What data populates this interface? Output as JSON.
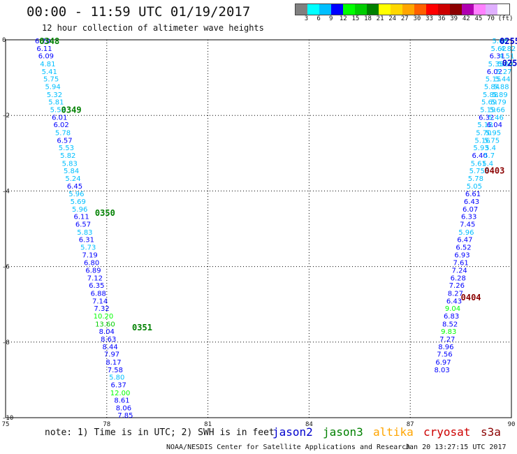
{
  "header": {
    "title": "00:00 - 11:59 UTC 01/19/2017",
    "subtitle": "12 hour collection of altimeter wave heights"
  },
  "legend": {
    "colors": [
      "#808080",
      "#00ffff",
      "#00bfff",
      "#0000ff",
      "#00ff00",
      "#00cd00",
      "#008000",
      "#ffff00",
      "#ffd700",
      "#ffa500",
      "#ff6000",
      "#ff0000",
      "#cd0000",
      "#8b0000",
      "#b000b0",
      "#ff80ff",
      "#e0b0ff",
      "#ffffff"
    ],
    "labels": [
      "3",
      "6",
      "9",
      "12",
      "15",
      "18",
      "21",
      "24",
      "27",
      "30",
      "33",
      "36",
      "39",
      "42",
      "45",
      "70",
      "(ft)"
    ]
  },
  "map": {
    "lon_range": [
      75,
      90
    ],
    "lat_range": [
      -10,
      0
    ],
    "lon_ticks": [
      "75",
      "78",
      "81",
      "84",
      "87",
      "90"
    ],
    "lat_ticks": [
      "0",
      "-2",
      "-4",
      "-6",
      "-8",
      "-10"
    ],
    "grid": "dotted"
  },
  "tracks": [
    {
      "satellite": "jason3",
      "points": [
        {
          "lon": 76.1,
          "lat": -0.02,
          "swh": "6.20"
        },
        {
          "lon": 76.15,
          "lat": -0.22,
          "swh": "6.11"
        },
        {
          "lon": 76.2,
          "lat": -0.42,
          "swh": "6.09"
        },
        {
          "lon": 76.25,
          "lat": -0.63,
          "swh": "4.81"
        },
        {
          "lon": 76.3,
          "lat": -0.83,
          "swh": "5.41"
        },
        {
          "lon": 76.35,
          "lat": -1.03,
          "swh": "5.75"
        },
        {
          "lon": 76.4,
          "lat": -1.23,
          "swh": "5.94"
        },
        {
          "lon": 76.45,
          "lat": -1.44,
          "swh": "5.32"
        },
        {
          "lon": 76.5,
          "lat": -1.64,
          "swh": "5.81"
        },
        {
          "lon": 76.55,
          "lat": -1.84,
          "swh": "5.52"
        },
        {
          "lon": 76.6,
          "lat": -2.04,
          "swh": "6.01"
        },
        {
          "lon": 76.65,
          "lat": -2.24,
          "swh": "6.02"
        },
        {
          "lon": 76.7,
          "lat": -2.45,
          "swh": "5.78"
        },
        {
          "lon": 76.75,
          "lat": -2.65,
          "swh": "6.57"
        },
        {
          "lon": 76.8,
          "lat": -2.85,
          "swh": "5.53"
        },
        {
          "lon": 76.85,
          "lat": -3.05,
          "swh": "5.82"
        },
        {
          "lon": 76.9,
          "lat": -3.26,
          "swh": "5.83"
        },
        {
          "lon": 76.95,
          "lat": -3.46,
          "swh": "5.84"
        },
        {
          "lon": 77.0,
          "lat": -3.66,
          "swh": "5.24"
        },
        {
          "lon": 77.05,
          "lat": -3.86,
          "swh": "6.45"
        },
        {
          "lon": 77.1,
          "lat": -4.07,
          "swh": "5.96"
        },
        {
          "lon": 77.15,
          "lat": -4.27,
          "swh": "5.69"
        },
        {
          "lon": 77.2,
          "lat": -4.47,
          "swh": "5.96"
        },
        {
          "lon": 77.25,
          "lat": -4.67,
          "swh": "6.11"
        },
        {
          "lon": 77.3,
          "lat": -4.87,
          "swh": "6.57"
        },
        {
          "lon": 77.35,
          "lat": -5.08,
          "swh": "5.83"
        },
        {
          "lon": 77.4,
          "lat": -5.28,
          "swh": "6.31"
        },
        {
          "lon": 77.45,
          "lat": -5.48,
          "swh": "5.73"
        },
        {
          "lon": 77.5,
          "lat": -5.68,
          "swh": "7.19"
        },
        {
          "lon": 77.55,
          "lat": -5.89,
          "swh": "6.80"
        },
        {
          "lon": 77.6,
          "lat": -6.09,
          "swh": "6.89"
        },
        {
          "lon": 77.65,
          "lat": -6.29,
          "swh": "7.12"
        },
        {
          "lon": 77.7,
          "lat": -6.49,
          "swh": "6.35"
        },
        {
          "lon": 77.75,
          "lat": -6.7,
          "swh": "6.88"
        },
        {
          "lon": 77.8,
          "lat": -6.9,
          "swh": "7.14"
        },
        {
          "lon": 77.85,
          "lat": -7.1,
          "swh": "7.32"
        },
        {
          "lon": 77.9,
          "lat": -7.3,
          "swh": "10.20"
        },
        {
          "lon": 77.95,
          "lat": -7.51,
          "swh": "13.60"
        },
        {
          "lon": 78.0,
          "lat": -7.71,
          "swh": "8.04"
        },
        {
          "lon": 78.05,
          "lat": -7.91,
          "swh": "8.63"
        },
        {
          "lon": 78.1,
          "lat": -8.11,
          "swh": "8.44"
        },
        {
          "lon": 78.15,
          "lat": -8.31,
          "swh": "7.97"
        },
        {
          "lon": 78.2,
          "lat": -8.52,
          "swh": "8.17"
        },
        {
          "lon": 78.25,
          "lat": -8.72,
          "swh": "7.58"
        },
        {
          "lon": 78.3,
          "lat": -8.92,
          "swh": "5.80"
        },
        {
          "lon": 78.35,
          "lat": -9.12,
          "swh": "6.37"
        },
        {
          "lon": 78.4,
          "lat": -9.33,
          "swh": "12.00"
        },
        {
          "lon": 78.45,
          "lat": -9.53,
          "swh": "8.61"
        },
        {
          "lon": 78.5,
          "lat": -9.73,
          "swh": "8.06"
        },
        {
          "lon": 78.55,
          "lat": -9.93,
          "swh": "7.85"
        }
      ],
      "times": [
        {
          "lon": 76.3,
          "lat": -0.02,
          "label": "0348"
        },
        {
          "lon": 76.95,
          "lat": -1.84,
          "label": "0349"
        },
        {
          "lon": 77.95,
          "lat": -4.57,
          "label": "0350"
        },
        {
          "lon": 79.05,
          "lat": -7.6,
          "label": "0351"
        }
      ]
    },
    {
      "satellite": "altika",
      "points": [
        {
          "lon": 89.66,
          "lat": -0.02,
          "swh": "5.68"
        },
        {
          "lon": 89.62,
          "lat": -0.22,
          "swh": "5.62"
        },
        {
          "lon": 89.58,
          "lat": -0.42,
          "swh": "6.31"
        },
        {
          "lon": 89.54,
          "lat": -0.63,
          "swh": "5.35"
        },
        {
          "lon": 89.5,
          "lat": -0.83,
          "swh": "6.02"
        },
        {
          "lon": 89.46,
          "lat": -1.03,
          "swh": "5.15"
        },
        {
          "lon": 89.42,
          "lat": -1.23,
          "swh": "5.84"
        },
        {
          "lon": 89.38,
          "lat": -1.44,
          "swh": "5.88"
        },
        {
          "lon": 89.34,
          "lat": -1.64,
          "swh": "5.69"
        },
        {
          "lon": 89.3,
          "lat": -1.84,
          "swh": "5.19"
        },
        {
          "lon": 89.26,
          "lat": -2.04,
          "swh": "6.32"
        },
        {
          "lon": 89.22,
          "lat": -2.24,
          "swh": "5.18"
        },
        {
          "lon": 89.18,
          "lat": -2.45,
          "swh": "5.70"
        },
        {
          "lon": 89.14,
          "lat": -2.65,
          "swh": "5.16"
        },
        {
          "lon": 89.1,
          "lat": -2.85,
          "swh": "5.93"
        },
        {
          "lon": 89.06,
          "lat": -3.05,
          "swh": "6.40"
        },
        {
          "lon": 89.02,
          "lat": -3.26,
          "swh": "5.61"
        },
        {
          "lon": 88.98,
          "lat": -3.46,
          "swh": "5.75"
        },
        {
          "lon": 88.94,
          "lat": -3.66,
          "swh": "5.78"
        },
        {
          "lon": 88.9,
          "lat": -3.86,
          "swh": "5.05"
        },
        {
          "lon": 88.86,
          "lat": -4.07,
          "swh": "6.61"
        },
        {
          "lon": 88.82,
          "lat": -4.27,
          "swh": "6.43"
        },
        {
          "lon": 88.78,
          "lat": -4.47,
          "swh": "6.07"
        },
        {
          "lon": 88.74,
          "lat": -4.67,
          "swh": "6.33"
        },
        {
          "lon": 88.7,
          "lat": -4.87,
          "swh": "7.45"
        },
        {
          "lon": 88.66,
          "lat": -5.08,
          "swh": "5.96"
        },
        {
          "lon": 88.62,
          "lat": -5.28,
          "swh": "6.47"
        },
        {
          "lon": 88.58,
          "lat": -5.48,
          "swh": "6.52"
        },
        {
          "lon": 88.54,
          "lat": -5.68,
          "swh": "6.93"
        },
        {
          "lon": 88.5,
          "lat": -5.89,
          "swh": "7.61"
        },
        {
          "lon": 88.46,
          "lat": -6.09,
          "swh": "7.24"
        },
        {
          "lon": 88.42,
          "lat": -6.29,
          "swh": "6.28"
        },
        {
          "lon": 88.38,
          "lat": -6.49,
          "swh": "7.26"
        },
        {
          "lon": 88.34,
          "lat": -6.7,
          "swh": "8.27"
        },
        {
          "lon": 88.3,
          "lat": -6.9,
          "swh": "6.43"
        },
        {
          "lon": 88.26,
          "lat": -7.1,
          "swh": "9.04"
        },
        {
          "lon": 88.22,
          "lat": -7.3,
          "swh": "6.83"
        },
        {
          "lon": 88.18,
          "lat": -7.51,
          "swh": "8.52"
        },
        {
          "lon": 88.14,
          "lat": -7.71,
          "swh": "9.83"
        },
        {
          "lon": 88.1,
          "lat": -7.91,
          "swh": "7.27"
        },
        {
          "lon": 88.06,
          "lat": -8.11,
          "swh": "8.96"
        },
        {
          "lon": 88.02,
          "lat": -8.31,
          "swh": "7.56"
        },
        {
          "lon": 87.98,
          "lat": -8.52,
          "swh": "6.97"
        },
        {
          "lon": 87.94,
          "lat": -8.72,
          "swh": "8.03"
        }
      ],
      "times": []
    },
    {
      "satellite": "jason2",
      "points": [
        {
          "lon": 89.9,
          "lat": -0.22,
          "swh": "4.82"
        },
        {
          "lon": 89.86,
          "lat": -0.42,
          "swh": "4.51"
        },
        {
          "lon": 89.82,
          "lat": -0.63,
          "swh": "5.00"
        },
        {
          "lon": 89.78,
          "lat": -0.83,
          "swh": "5.27"
        },
        {
          "lon": 89.74,
          "lat": -1.03,
          "swh": "5.44"
        },
        {
          "lon": 89.7,
          "lat": -1.23,
          "swh": "5.88"
        },
        {
          "lon": 89.66,
          "lat": -1.44,
          "swh": "5.89"
        },
        {
          "lon": 89.62,
          "lat": -1.64,
          "swh": "5.79"
        },
        {
          "lon": 89.58,
          "lat": -1.84,
          "swh": "5.66"
        },
        {
          "lon": 89.54,
          "lat": -2.04,
          "swh": "5.46"
        },
        {
          "lon": 89.5,
          "lat": -2.24,
          "swh": "6.04"
        },
        {
          "lon": 89.46,
          "lat": -2.45,
          "swh": "5.95"
        },
        {
          "lon": 89.42,
          "lat": -2.65,
          "swh": "5.75"
        },
        {
          "lon": 89.38,
          "lat": -2.85,
          "swh": "5.4"
        },
        {
          "lon": 89.34,
          "lat": -3.05,
          "swh": "5.7"
        },
        {
          "lon": 89.3,
          "lat": -3.26,
          "swh": "5.4"
        },
        {
          "lon": 89.26,
          "lat": -3.46,
          "swh": "5"
        }
      ],
      "times": [
        {
          "lon": 89.95,
          "lat": -0.02,
          "label": "0255"
        },
        {
          "lon": 89.95,
          "lat": -0.6,
          "label": "025"
        }
      ]
    },
    {
      "satellite": "cryosat",
      "points": [],
      "times": [
        {
          "lon": 89.5,
          "lat": -3.45,
          "label": "0403"
        },
        {
          "lon": 88.8,
          "lat": -6.8,
          "label": "0404"
        }
      ]
    }
  ],
  "footer": {
    "note": "note: 1) Time is in UTC; 2) SWH is in feet",
    "satellites": [
      {
        "name": "jason2",
        "color": "#0000cd"
      },
      {
        "name": "jason3",
        "color": "#008000"
      },
      {
        "name": "altika",
        "color": "#ffa500"
      },
      {
        "name": "cryosat",
        "color": "#cd0000"
      },
      {
        "name": "s3a",
        "color": "#8b0000"
      }
    ],
    "credit": "NOAA/NESDIS Center for Satellite Applications and Research",
    "generated": "Jan 20 13:27:15 UTC 2017"
  }
}
